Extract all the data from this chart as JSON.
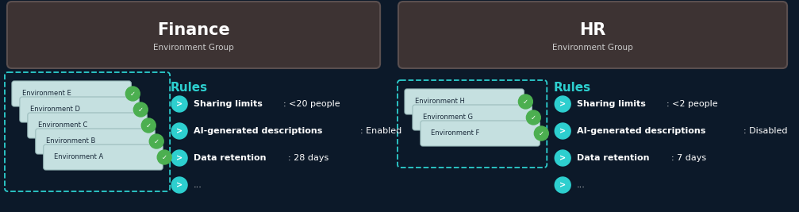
{
  "bg_color": "#0c1929",
  "panel_bg": "#3d3333",
  "panel_border": "#5a4f4f",
  "header_left_title": "Finance",
  "header_left_sub": "Environment Group",
  "header_right_title": "HR",
  "header_right_sub": "Environment Group",
  "teal": "#2dcfcf",
  "card_bg": "#c5e0e0",
  "card_border": "#aacccc",
  "white": "#ffffff",
  "light_gray": "#cccccc",
  "green_dot": "#4caf50",
  "finance_envs": [
    "Environment E",
    "Environment D",
    "Environment C",
    "Environment B",
    "Environment A"
  ],
  "hr_envs": [
    "Environment H",
    "Environment G",
    "Environment F"
  ],
  "finance_rules": [
    [
      "Sharing limits",
      ": <20 people"
    ],
    [
      "AI-generated descriptions",
      ": Enabled"
    ],
    [
      "Data retention",
      ": 28 days"
    ],
    [
      "...",
      ""
    ]
  ],
  "hr_rules": [
    [
      "Sharing limits",
      ": <2 people"
    ],
    [
      "AI-generated descriptions",
      ": Disabled"
    ],
    [
      "Data retention",
      ": 7 days"
    ],
    [
      "...",
      ""
    ]
  ]
}
